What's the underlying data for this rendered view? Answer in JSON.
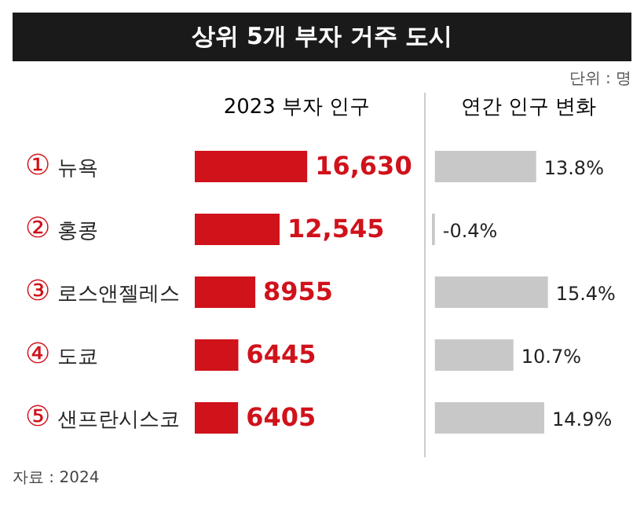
{
  "chart_data": [
    {
      "type": "bar",
      "orientation": "horizontal",
      "title": "상위 5개 부자 거주 도시",
      "subtitle": "2023 부자 인구",
      "annotations": [
        "단위 : 명",
        "자료 : 2024"
      ],
      "categories": [
        "① 뉴욕",
        "② 홍콩",
        "③ 로스앤젤레스",
        "④ 도쿄",
        "⑤ 샌프란시스코"
      ],
      "values": [
        16630,
        12545,
        8955,
        6445,
        6405
      ],
      "value_labels": [
        "16,630",
        "12,545",
        "8955",
        "6445",
        "6405"
      ],
      "color": "#d0121b",
      "tick_labels": "y",
      "grid": false,
      "legend": false
    },
    {
      "type": "bar",
      "orientation": "horizontal",
      "title": "연간 인구 변화",
      "categories": [
        null,
        null,
        null,
        null,
        null
      ],
      "values": [
        13.8,
        -0.4,
        15.4,
        10.7,
        14.9
      ],
      "value_labels": [
        "13.8%",
        "-0.4%",
        "15.4%",
        "10.7%",
        "14.9%"
      ],
      "color": "#c8c8c8",
      "tick_labels": false,
      "grid": false,
      "legend": false
    }
  ]
}
